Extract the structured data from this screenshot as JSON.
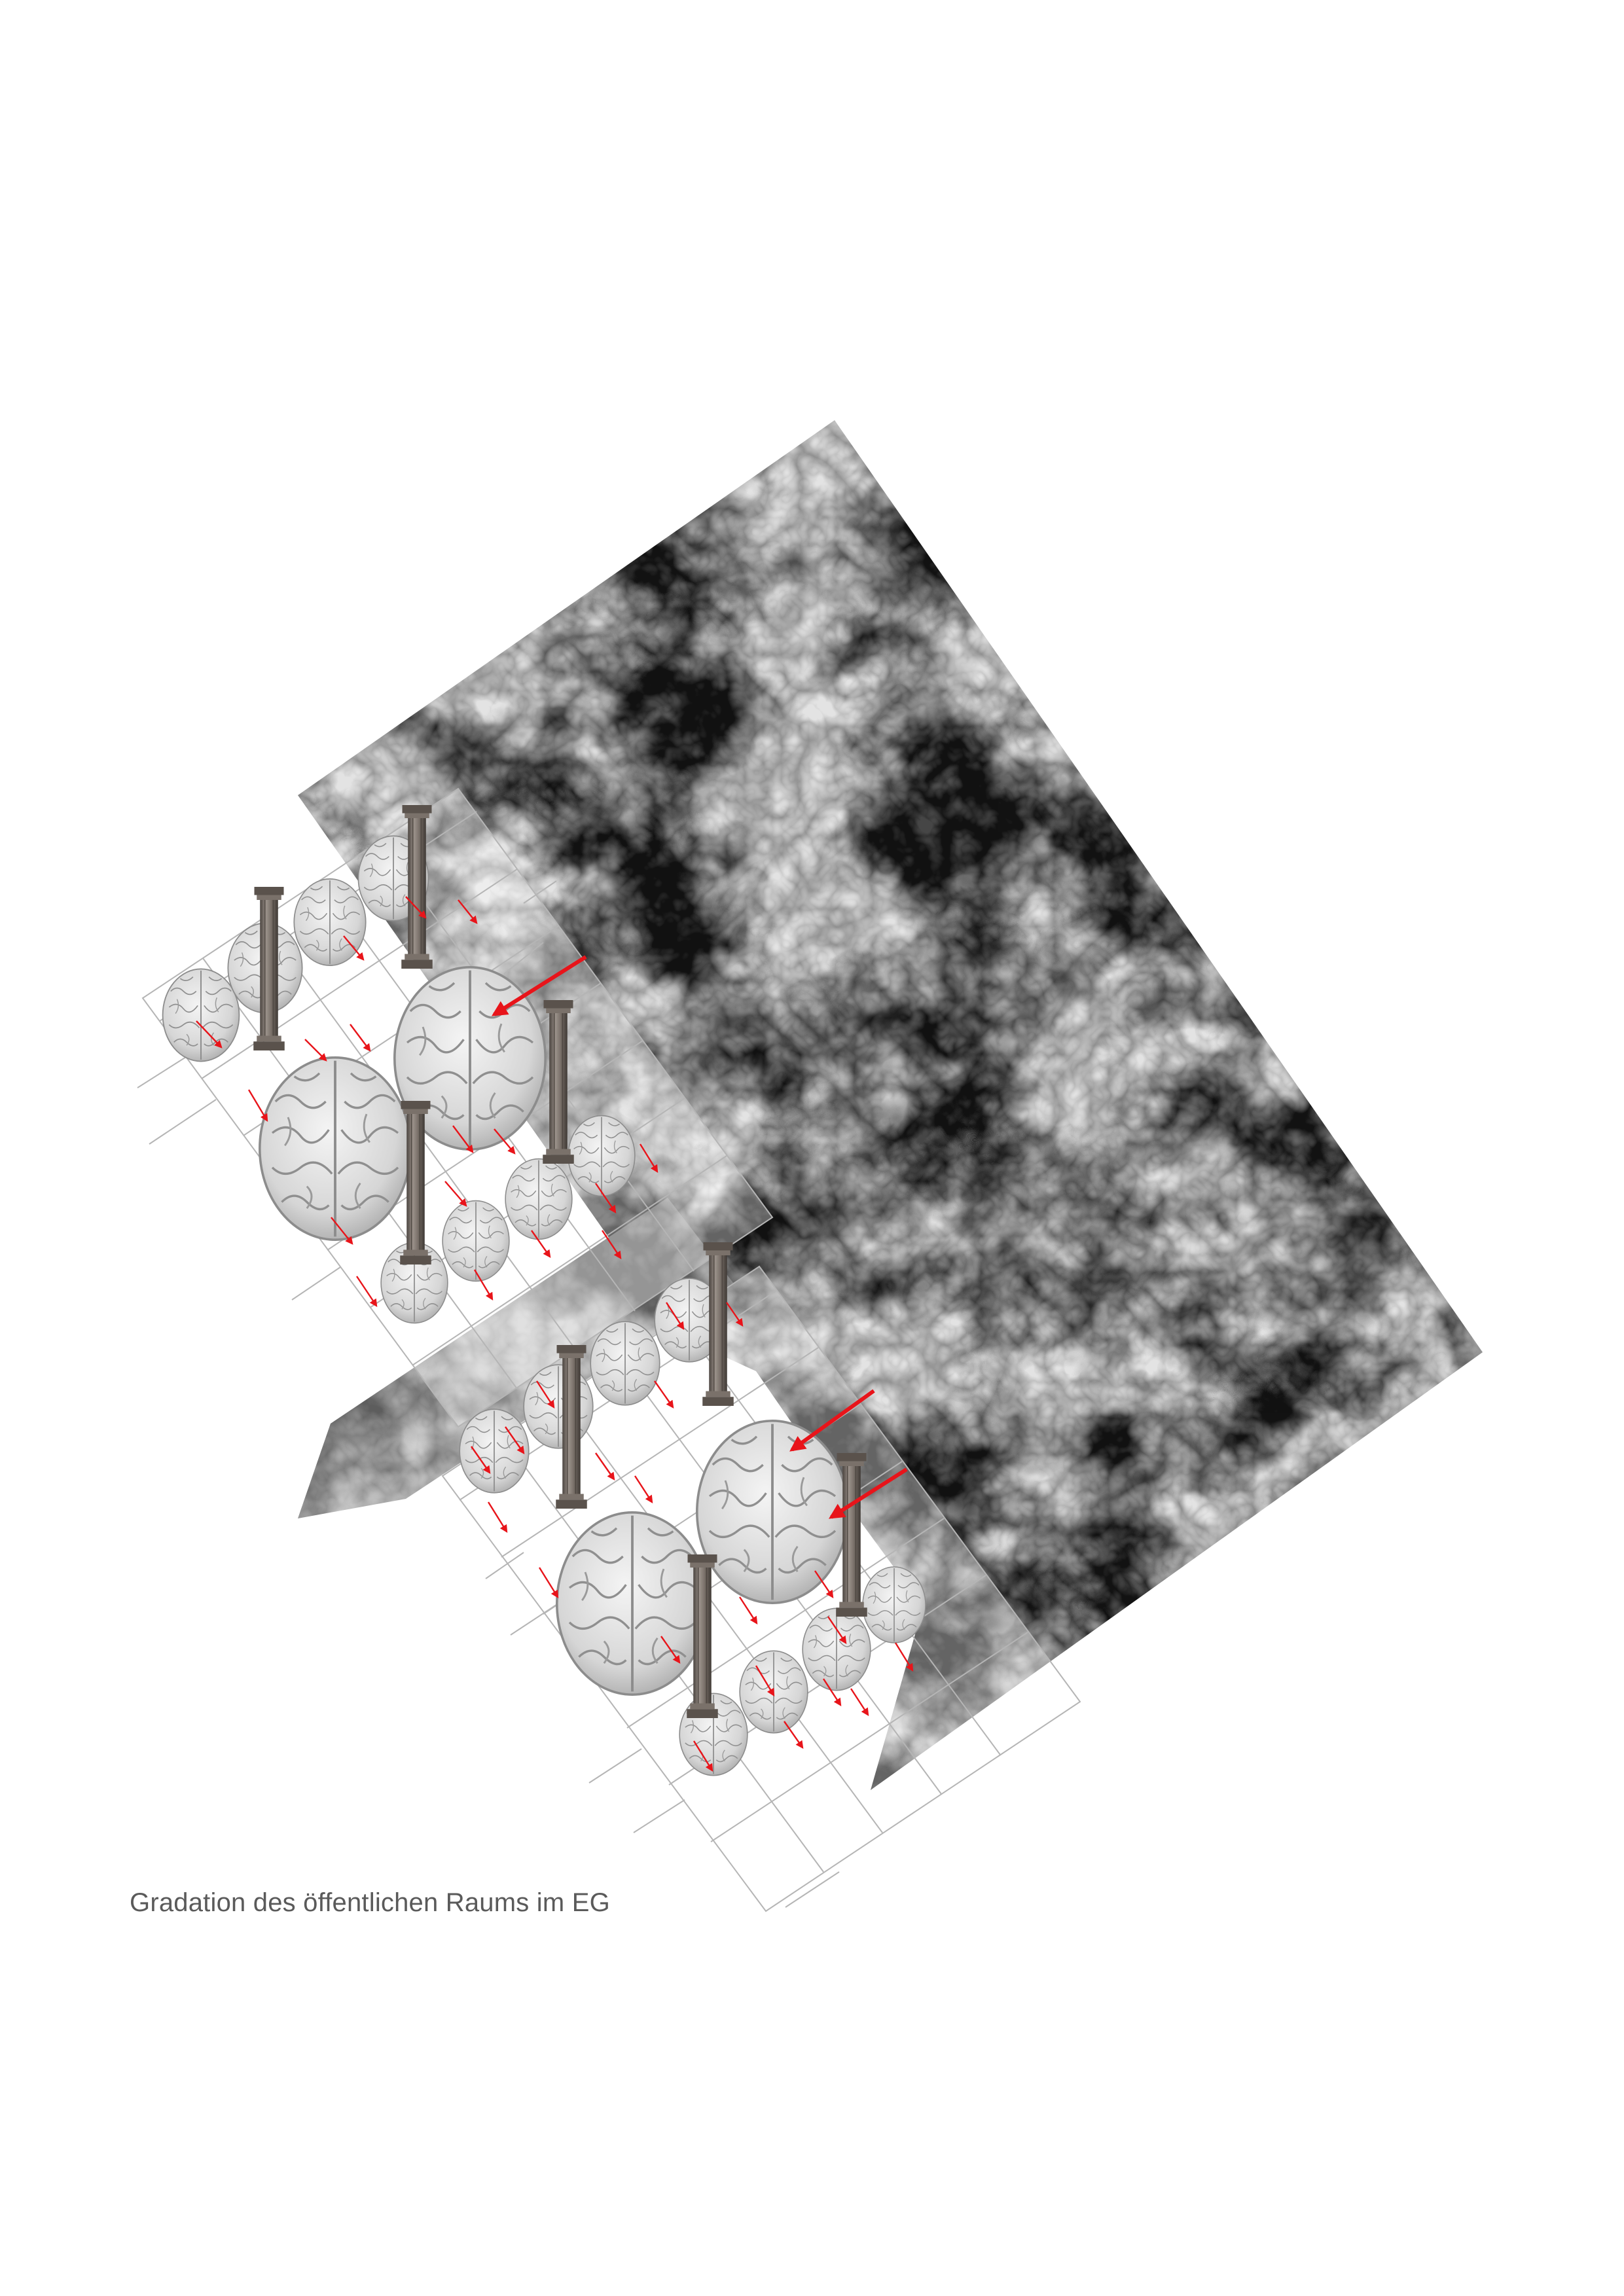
{
  "caption": "Gradation des öffentlichen Raums im EG",
  "colors": {
    "background": "#ffffff",
    "smoke_light": "#d4d4d4",
    "smoke_dark": "#1e1e1e",
    "grid_line": "#b5b5b5",
    "brain_fill": "#dcdcdc",
    "brain_stroke": "#8c8c8c",
    "column": "#6e6660",
    "arrow": "#e8141a",
    "caption_text": "#5a5a5a"
  },
  "icons": [
    "smoke-texture-panel",
    "brain-icon",
    "column-icon",
    "arrow-icon"
  ]
}
